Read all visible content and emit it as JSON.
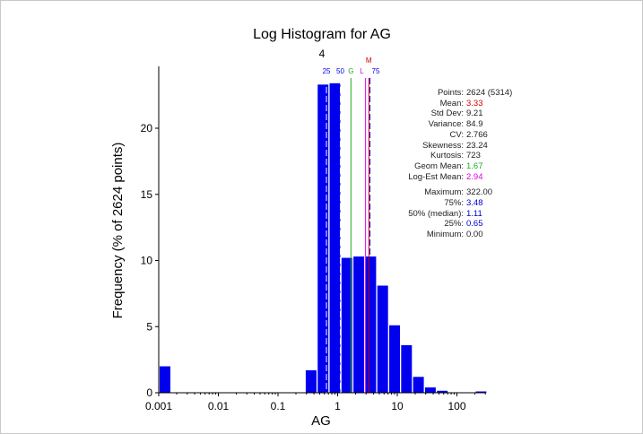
{
  "chart_data": {
    "type": "bar",
    "title": "Log Histogram for AG",
    "subtitle": "4",
    "xlabel": "AG",
    "ylabel": "Frequency (% of 2624 points)",
    "xscale": "log",
    "xlim": [
      0.001,
      350
    ],
    "ylim": [
      0,
      24.6
    ],
    "xticks": [
      {
        "v": 0.001,
        "label": "0.001"
      },
      {
        "v": 0.01,
        "label": "0.01"
      },
      {
        "v": 0.1,
        "label": "0.1"
      },
      {
        "v": 1,
        "label": "1"
      },
      {
        "v": 10,
        "label": "10"
      },
      {
        "v": 100,
        "label": "100"
      }
    ],
    "yticks": [
      {
        "v": 0,
        "label": "0"
      },
      {
        "v": 5,
        "label": "5"
      },
      {
        "v": 10,
        "label": "10"
      },
      {
        "v": 15,
        "label": "15"
      },
      {
        "v": 20,
        "label": "20"
      }
    ],
    "bins_log10_left": [
      -3.0,
      -0.55,
      -0.35,
      -0.15,
      0.05,
      0.25,
      0.45,
      0.65,
      0.85,
      1.05,
      1.25,
      1.45,
      1.65,
      2.3
    ],
    "bin_width_log10": 0.18,
    "values": [
      2.0,
      1.7,
      23.3,
      23.4,
      10.2,
      10.3,
      10.3,
      8.1,
      5.1,
      3.6,
      1.2,
      0.4,
      0.15,
      0.1
    ],
    "bar_color": "#0000ee",
    "markers": [
      {
        "label": "25",
        "value": 0.65,
        "color": "#ffffff",
        "label_color": "#0000ee",
        "dashed": true
      },
      {
        "label": "50",
        "value": 1.11,
        "color": "#ffffff",
        "label_color": "#0000ee",
        "dashed": true
      },
      {
        "label": "G",
        "value": 1.67,
        "color": "#22aa22",
        "label_color": "#22aa22",
        "dashed": false
      },
      {
        "label": "L",
        "value": 2.94,
        "color": "#dd00dd",
        "label_color": "#dd00dd",
        "dashed": false
      },
      {
        "label": "M",
        "value": 3.33,
        "color": "#cc0000",
        "label_color": "#cc0000",
        "dashed": false
      },
      {
        "label": "75",
        "value": 3.48,
        "color": "#0000ee",
        "label_color": "#0000ee",
        "dashed": true
      }
    ]
  },
  "stats": [
    {
      "k": "Points:",
      "v": "2624 (5314)",
      "c": "#222222"
    },
    {
      "k": "Mean:",
      "v": "3.33",
      "c": "#dd0000"
    },
    {
      "k": "Std Dev:",
      "v": "9.21",
      "c": "#222222"
    },
    {
      "k": "Variance:",
      "v": "84.9",
      "c": "#222222"
    },
    {
      "k": "CV:",
      "v": "2.766",
      "c": "#222222"
    },
    {
      "k": "Skewness:",
      "v": "23.24",
      "c": "#222222"
    },
    {
      "k": "Kurtosis:",
      "v": "723",
      "c": "#222222"
    },
    {
      "k": "Geom Mean:",
      "v": "1.67",
      "c": "#22aa22"
    },
    {
      "k": "Log-Est Mean:",
      "v": "2.94",
      "c": "#dd00dd"
    }
  ],
  "stats2": [
    {
      "k": "Maximum:",
      "v": "322.00",
      "c": "#222222"
    },
    {
      "k": "75%:",
      "v": "3.48",
      "c": "#0000cc"
    },
    {
      "k": "50% (median):",
      "v": "1.11",
      "c": "#0000cc"
    },
    {
      "k": "25%:",
      "v": "0.65",
      "c": "#0000cc"
    },
    {
      "k": "Minimum:",
      "v": "0.00",
      "c": "#222222"
    }
  ]
}
